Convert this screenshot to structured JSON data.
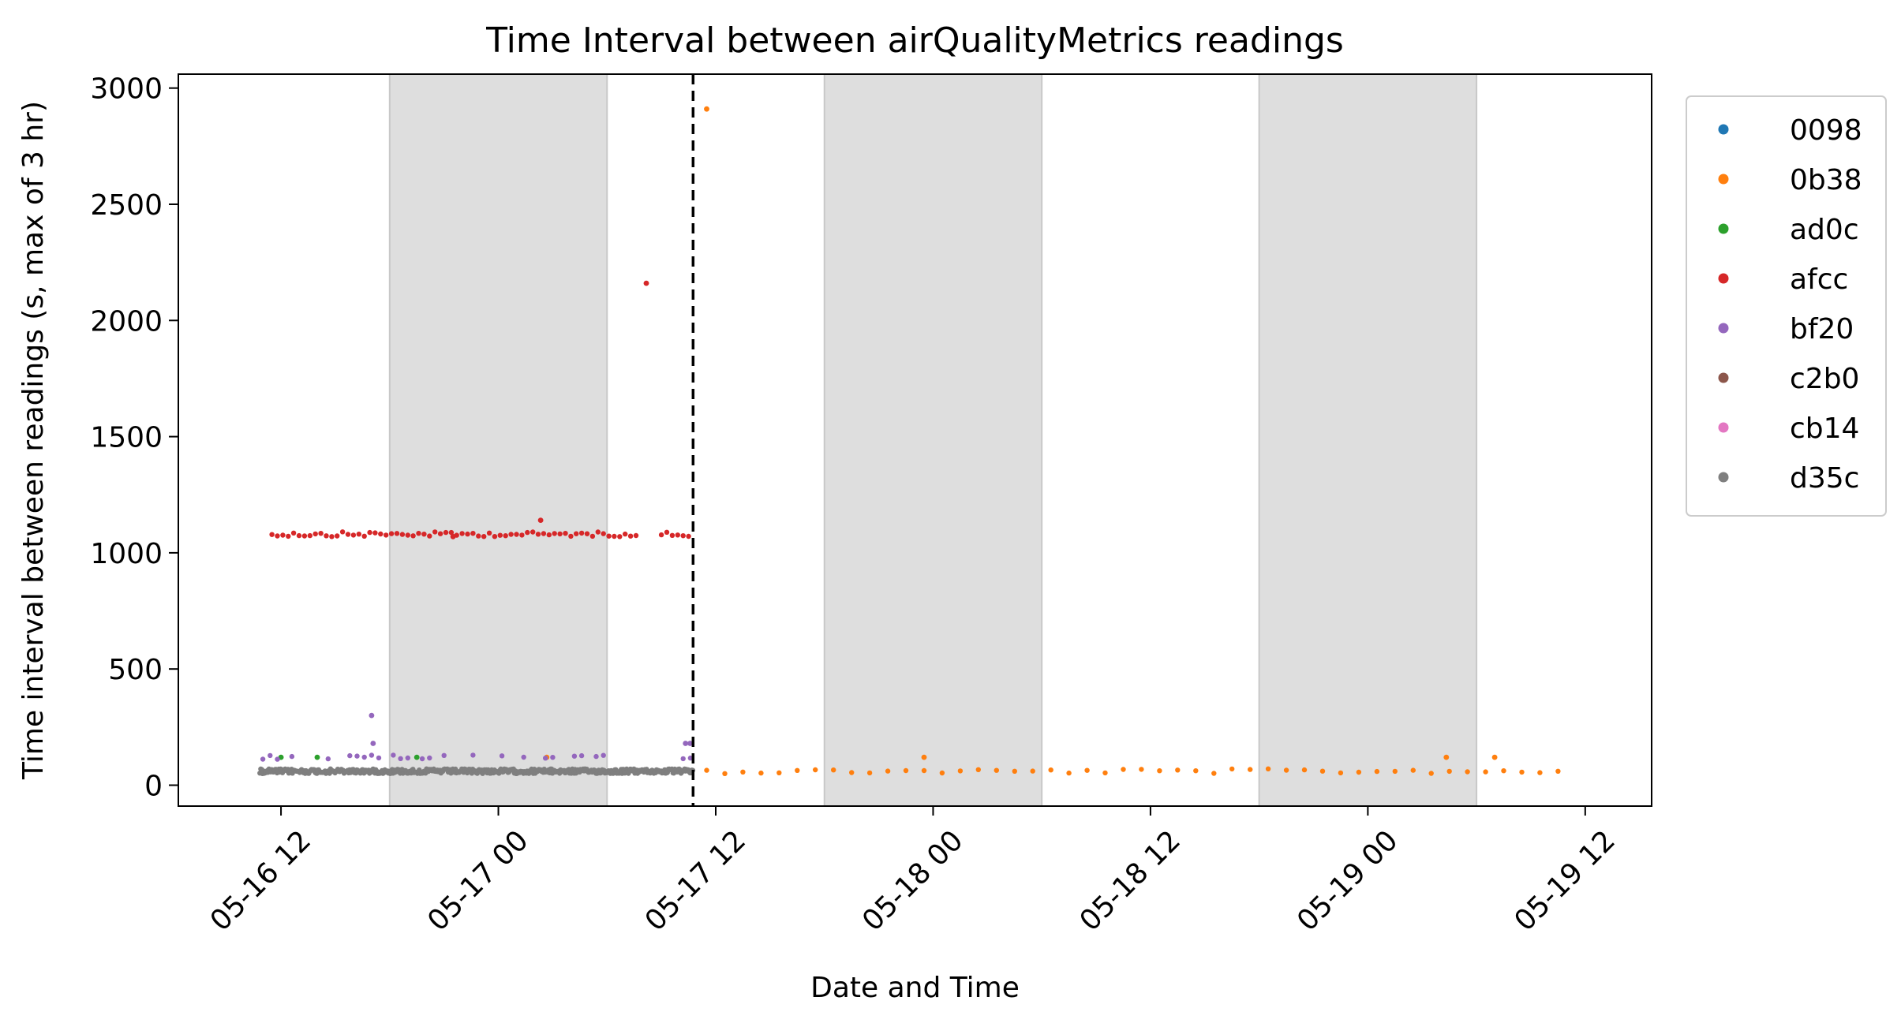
{
  "chart_data": {
    "type": "scatter",
    "title": "Time Interval between airQualityMetrics readings",
    "xlabel": "Date and Time",
    "ylabel": "Time interval between readings (s, max of 3 hr)",
    "xlim": [
      "2024-05-16 06:20",
      "2024-05-19 15:40"
    ],
    "ylim": [
      -90,
      3060
    ],
    "x_ticks": [
      "2024-05-16 12:00",
      "2024-05-17 00:00",
      "2024-05-17 12:00",
      "2024-05-18 00:00",
      "2024-05-18 12:00",
      "2024-05-19 00:00",
      "2024-05-19 12:00"
    ],
    "x_tick_labels": [
      "05-16 12",
      "05-17 00",
      "05-17 12",
      "05-18 00",
      "05-18 12",
      "05-19 00",
      "05-19 12"
    ],
    "y_ticks": [
      0,
      500,
      1000,
      1500,
      2000,
      2500,
      3000
    ],
    "y_tick_labels": [
      "0",
      "500",
      "1000",
      "1500",
      "2000",
      "2500",
      "3000"
    ],
    "grid": false,
    "legend_position": "outside-right-top",
    "shaded_spans": [
      [
        "2024-05-16 18:00",
        "2024-05-17 06:00"
      ],
      [
        "2024-05-17 18:00",
        "2024-05-18 06:00"
      ],
      [
        "2024-05-18 18:00",
        "2024-05-19 06:00"
      ]
    ],
    "vertical_line": "2024-05-17 10:45",
    "series": [
      {
        "name": "0098",
        "color": "#1f77b4",
        "points": []
      },
      {
        "name": "0b38",
        "color": "#ff7f0e",
        "segments": [
          {
            "from": "2024-05-17 11:30",
            "to": "2024-05-19 10:55",
            "interval_min": 60,
            "value": 60
          }
        ],
        "points": [
          {
            "x": "2024-05-17 11:30",
            "y": 2910
          },
          {
            "x": "2024-05-17 23:30",
            "y": 120
          },
          {
            "x": "2024-05-19 04:20",
            "y": 120
          },
          {
            "x": "2024-05-19 07:00",
            "y": 120
          },
          {
            "x": "2024-05-17 02:40",
            "y": 120
          }
        ]
      },
      {
        "name": "ad0c",
        "color": "#2ca02c",
        "points": [
          {
            "x": "2024-05-16 12:00",
            "y": 120
          },
          {
            "x": "2024-05-16 14:00",
            "y": 120
          },
          {
            "x": "2024-05-16 19:30",
            "y": 120
          }
        ]
      },
      {
        "name": "afcc",
        "color": "#d62728",
        "segments": [
          {
            "from": "2024-05-16 11:30",
            "to": "2024-05-17 07:40",
            "interval_min": 18,
            "value": 1080
          },
          {
            "from": "2024-05-17 09:00",
            "to": "2024-05-17 10:40",
            "interval_min": 18,
            "value": 1080
          }
        ],
        "points": [
          {
            "x": "2024-05-17 02:20",
            "y": 1140
          },
          {
            "x": "2024-05-17 08:10",
            "y": 2160
          },
          {
            "x": "2024-05-16 21:30",
            "y": 1070
          }
        ]
      },
      {
        "name": "bf20",
        "color": "#9467bd",
        "segments": [
          {
            "from": "2024-05-16 11:00",
            "to": "2024-05-17 10:40",
            "interval_min": 24,
            "value": 120,
            "density": 0.55
          }
        ],
        "points": [
          {
            "x": "2024-05-16 17:00",
            "y": 300
          },
          {
            "x": "2024-05-16 17:05",
            "y": 180
          },
          {
            "x": "2024-05-17 10:20",
            "y": 180
          },
          {
            "x": "2024-05-17 10:35",
            "y": 180
          }
        ]
      },
      {
        "name": "c2b0",
        "color": "#8c564b",
        "points": []
      },
      {
        "name": "cb14",
        "color": "#e377c2",
        "points": []
      },
      {
        "name": "d35c",
        "color": "#7f7f7f",
        "segments": [
          {
            "from": "2024-05-16 10:50",
            "to": "2024-05-17 10:45",
            "interval_min": 3,
            "value": 60
          }
        ],
        "points": []
      }
    ]
  }
}
